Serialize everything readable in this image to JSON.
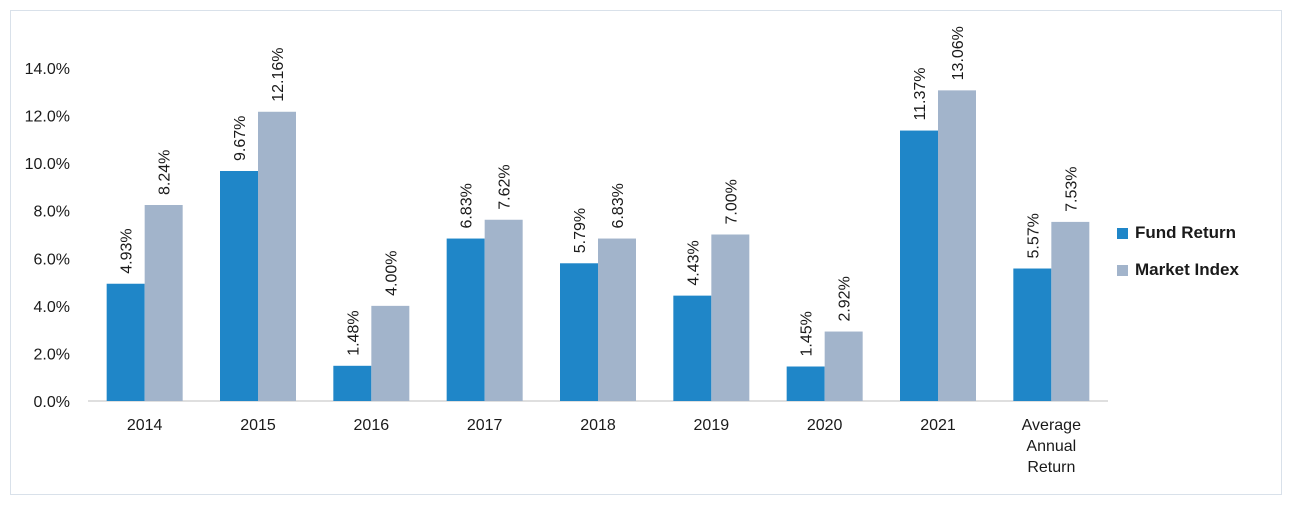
{
  "chart_data": {
    "type": "bar",
    "title": "",
    "xlabel": "",
    "ylabel": "",
    "ylim": [
      0,
      14
    ],
    "yticks": [
      "0.0%",
      "2.0%",
      "4.0%",
      "6.0%",
      "8.0%",
      "10.0%",
      "12.0%",
      "14.0%"
    ],
    "categories": [
      [
        "2014"
      ],
      [
        "2015"
      ],
      [
        "2016"
      ],
      [
        "2017"
      ],
      [
        "2018"
      ],
      [
        "2019"
      ],
      [
        "2020"
      ],
      [
        "2021"
      ],
      [
        "Average",
        "Annual",
        "Return"
      ]
    ],
    "series": [
      {
        "name": "Fund Return",
        "color": "#1f86c8",
        "values": [
          4.93,
          9.67,
          1.48,
          6.83,
          5.79,
          4.43,
          1.45,
          11.37,
          5.57
        ],
        "labels": [
          "4.93%",
          "9.67%",
          "1.48%",
          "6.83%",
          "5.79%",
          "4.43%",
          "1.45%",
          "11.37%",
          "5.57%"
        ]
      },
      {
        "name": "Market Index",
        "color": "#a2b4cb",
        "values": [
          8.24,
          12.16,
          4.0,
          7.62,
          6.83,
          7.0,
          2.92,
          13.06,
          7.53
        ],
        "labels": [
          "8.24%",
          "12.16%",
          "4.00%",
          "7.62%",
          "6.83%",
          "7.00%",
          "2.92%",
          "13.06%",
          "7.53%"
        ]
      }
    ],
    "legend": "right",
    "grid": false
  }
}
